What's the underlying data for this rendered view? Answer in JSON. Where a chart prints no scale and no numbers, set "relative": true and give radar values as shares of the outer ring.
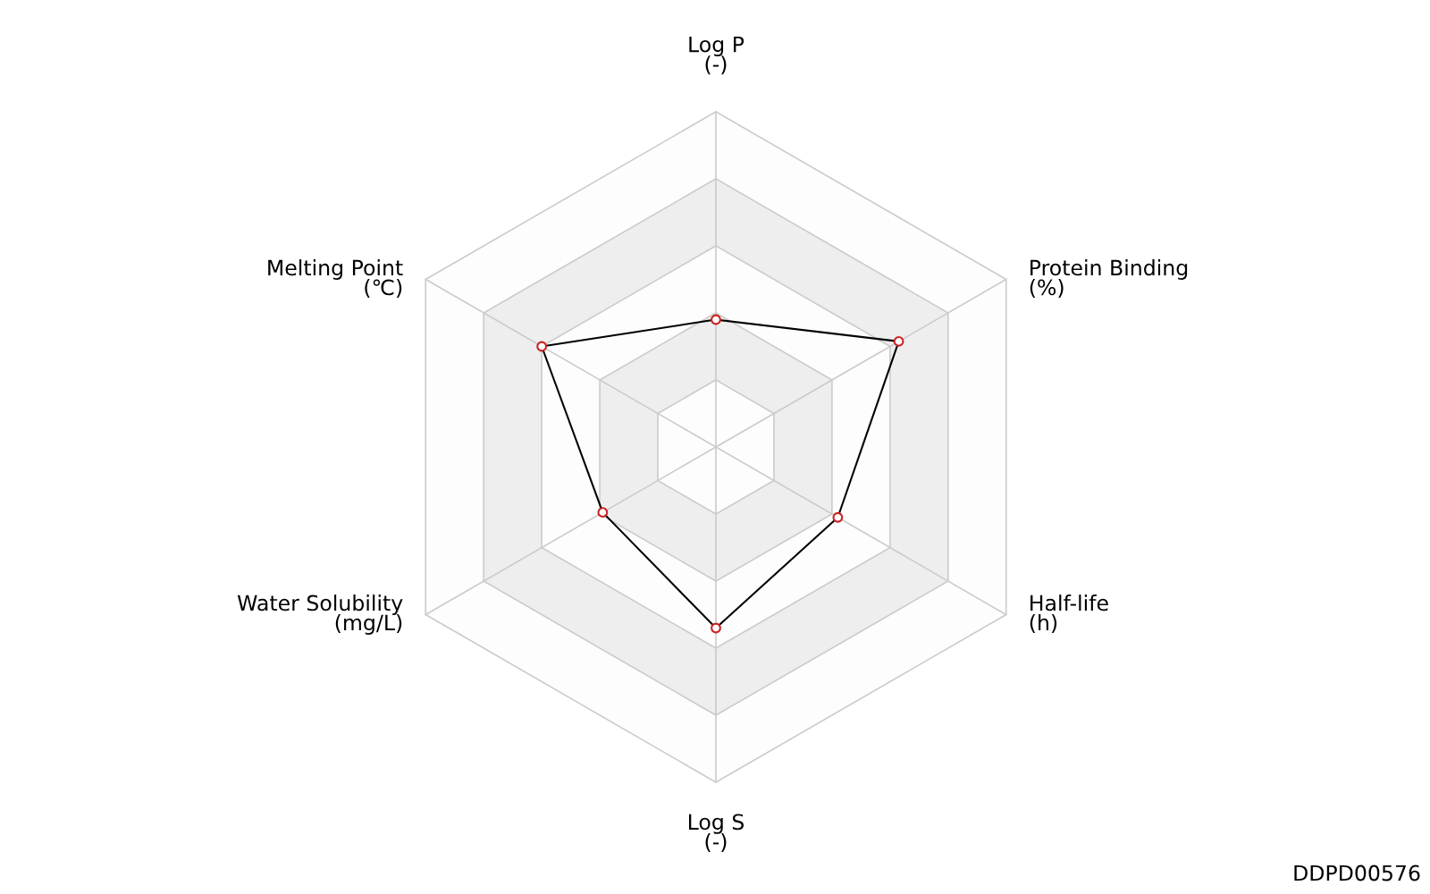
{
  "chart_data": {
    "type": "radar",
    "relative": true,
    "categories": [
      "Log P\n(-)",
      "Protein Binding\n(%)",
      "Half-life\n(h)",
      "Log S\n(-)",
      "Water Solubility\n(mg/L)",
      "Melting Point\n(℃)"
    ],
    "series": [
      {
        "color": "#000000",
        "values": [
          0.38,
          0.63,
          0.42,
          0.54,
          0.39,
          0.6
        ]
      }
    ],
    "marker": "circle",
    "grid": true,
    "annotations": [
      "DDPD00576"
    ]
  }
}
